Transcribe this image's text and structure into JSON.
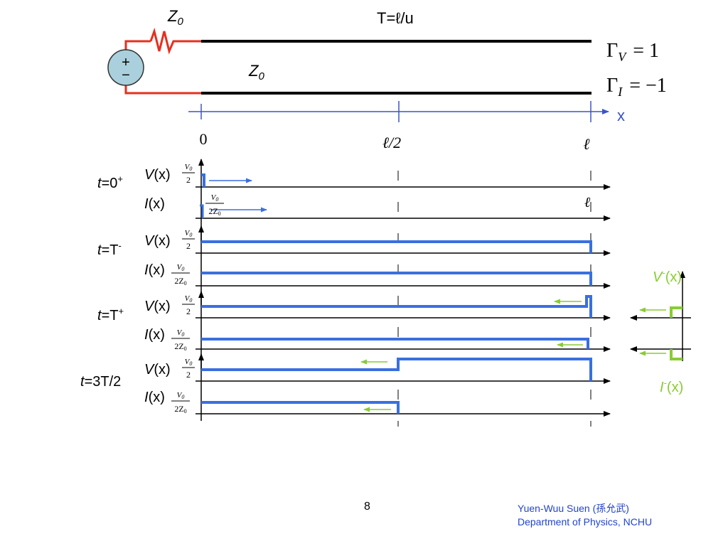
{
  "top": {
    "z0_source": "Z",
    "z0_line": "Z",
    "z0_sub": "0",
    "transit_time": "T=ℓ/u",
    "plus": "+",
    "minus": "−",
    "gamma_v_sub": "V",
    "gamma_v_value": "= 1",
    "gamma_i_sub": "I",
    "gamma_i_value": "= −1",
    "gamma_symbol": "Γ",
    "x_axis_label": "x",
    "tick_0": "0",
    "tick_half": "ℓ/2",
    "tick_l": "ℓ"
  },
  "fractions": {
    "v_num": "V",
    "v_sub": "0",
    "v_den": "2",
    "i_num": "V",
    "i_sub": "0",
    "i_den": "2Z",
    "i_den_sub": "0"
  },
  "labels": {
    "v_label": "V",
    "i_label": "I",
    "x_paren": "(x)",
    "l_small": "ℓ"
  },
  "times": {
    "t0": "=0",
    "t0_sup": "+",
    "tT_minus": "=T",
    "tT_minus_sup": "-",
    "tT_plus": "=T",
    "tT_plus_sup": "+",
    "t3T2": "=3T/2",
    "t": "t"
  },
  "reflected": {
    "v_minus": "V",
    "i_minus": "I",
    "sup": "-",
    "paren": "(x)"
  },
  "colors": {
    "waveform": "#3a6fe0",
    "source_wire": "#e53020",
    "source_fill": "#a9d0dc",
    "axis_blue": "#3a55c8",
    "reflected_green": "#88cc33",
    "footer_blue": "#2244cc"
  },
  "footer": {
    "page_number": "8",
    "author": "Yuen-Wuu Suen (孫允武)",
    "department": "Department of Physics, NCHU"
  }
}
